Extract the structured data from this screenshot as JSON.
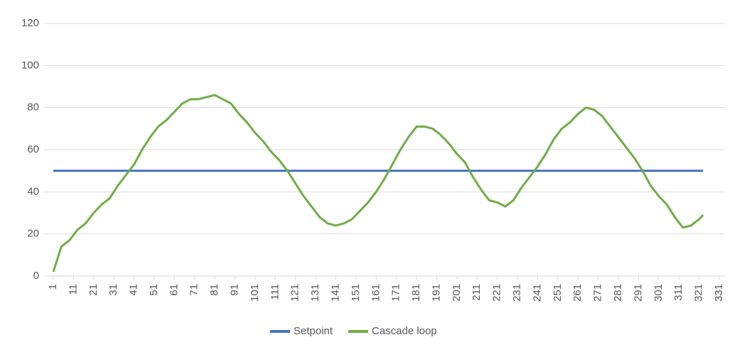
{
  "chart_data": {
    "type": "line",
    "x": [
      1,
      5,
      9,
      13,
      17,
      21,
      25,
      29,
      33,
      37,
      41,
      45,
      49,
      53,
      57,
      61,
      65,
      69,
      73,
      77,
      81,
      85,
      89,
      93,
      97,
      101,
      105,
      109,
      113,
      117,
      121,
      125,
      129,
      133,
      137,
      141,
      145,
      149,
      153,
      157,
      161,
      165,
      169,
      173,
      177,
      181,
      185,
      189,
      193,
      197,
      201,
      205,
      209,
      213,
      217,
      221,
      225,
      229,
      233,
      237,
      241,
      245,
      249,
      253,
      257,
      261,
      265,
      269,
      273,
      277,
      281,
      285,
      289,
      293,
      297,
      301,
      305,
      309,
      313,
      317,
      321,
      323
    ],
    "series": [
      {
        "name": "Setpoint",
        "color": "#4472c4",
        "values": [
          50,
          50,
          50,
          50,
          50,
          50,
          50,
          50,
          50,
          50,
          50,
          50,
          50,
          50,
          50,
          50,
          50,
          50,
          50,
          50,
          50,
          50,
          50,
          50,
          50,
          50,
          50,
          50,
          50,
          50,
          50,
          50,
          50,
          50,
          50,
          50,
          50,
          50,
          50,
          50,
          50,
          50,
          50,
          50,
          50,
          50,
          50,
          50,
          50,
          50,
          50,
          50,
          50,
          50,
          50,
          50,
          50,
          50,
          50,
          50,
          50,
          50,
          50,
          50,
          50,
          50,
          50,
          50,
          50,
          50,
          50,
          50,
          50,
          50,
          50,
          50,
          50,
          50,
          50,
          50,
          50,
          50
        ]
      },
      {
        "name": "Cascade loop",
        "color": "#70ad47",
        "values": [
          2,
          14,
          17,
          22,
          25,
          30,
          34,
          37,
          43,
          48,
          53,
          60,
          66,
          71,
          74,
          78,
          82,
          84,
          84,
          85,
          86,
          84,
          82,
          77,
          73,
          68,
          64,
          59,
          55,
          50,
          44,
          38,
          33,
          28,
          25,
          24,
          25,
          27,
          31,
          35,
          40,
          46,
          53,
          60,
          66,
          71,
          71,
          70,
          67,
          63,
          58,
          54,
          47,
          41,
          36,
          35,
          33,
          36,
          42,
          47,
          52,
          58,
          65,
          70,
          73,
          77,
          80,
          79,
          76,
          71,
          66,
          61,
          56,
          50,
          43,
          38,
          34,
          28,
          23,
          24,
          27,
          29
        ]
      }
    ],
    "xlim": [
      1,
      331
    ],
    "xticks": [
      1,
      11,
      21,
      31,
      41,
      51,
      61,
      71,
      81,
      91,
      101,
      111,
      121,
      131,
      141,
      151,
      161,
      171,
      181,
      191,
      201,
      211,
      221,
      231,
      241,
      251,
      261,
      271,
      281,
      291,
      301,
      311,
      321,
      331
    ],
    "ylim": [
      0,
      120
    ],
    "yticks": [
      0,
      20,
      40,
      60,
      80,
      100,
      120
    ],
    "grid": true,
    "legend": "bottom"
  }
}
